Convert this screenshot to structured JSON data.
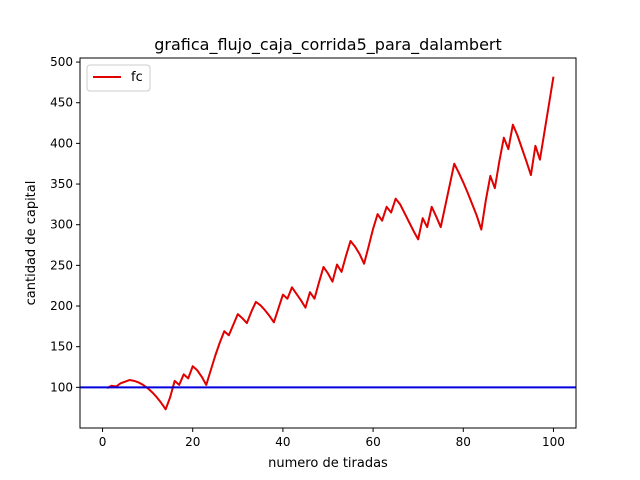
{
  "chart_data": {
    "type": "line",
    "title": "grafica_flujo_caja_corrida5_para_dalambert",
    "xlabel": "numero de tiradas",
    "ylabel": "cantidad de capital",
    "xlim": [
      -5,
      105
    ],
    "ylim": [
      50,
      505
    ],
    "x_ticks": [
      0,
      20,
      40,
      60,
      80,
      100
    ],
    "y_ticks": [
      100,
      150,
      200,
      250,
      300,
      350,
      400,
      450,
      500
    ],
    "grid": false,
    "legend_position": "top-left",
    "series": [
      {
        "name": "fc",
        "color": "#e00000",
        "x": [
          1,
          2,
          3,
          4,
          5,
          6,
          7,
          8,
          9,
          10,
          11,
          12,
          13,
          14,
          15,
          16,
          17,
          18,
          19,
          20,
          21,
          22,
          23,
          24,
          25,
          26,
          27,
          28,
          29,
          30,
          31,
          32,
          33,
          34,
          35,
          36,
          37,
          38,
          39,
          40,
          41,
          42,
          43,
          44,
          45,
          46,
          47,
          48,
          49,
          50,
          51,
          52,
          53,
          54,
          55,
          56,
          57,
          58,
          59,
          60,
          61,
          62,
          63,
          64,
          65,
          66,
          67,
          68,
          69,
          70,
          71,
          72,
          73,
          74,
          75,
          76,
          77,
          78,
          79,
          80,
          81,
          82,
          83,
          84,
          85,
          86,
          87,
          88,
          89,
          90,
          91,
          92,
          93,
          94,
          95,
          96,
          97,
          98,
          99,
          100
        ],
        "y": [
          99,
          102,
          101,
          105,
          107,
          109,
          108,
          106,
          103,
          99,
          94,
          88,
          81,
          73,
          88,
          108,
          103,
          116,
          111,
          126,
          121,
          113,
          103,
          121,
          139,
          155,
          169,
          164,
          177,
          190,
          185,
          179,
          193,
          205,
          201,
          195,
          188,
          180,
          197,
          214,
          209,
          223,
          215,
          207,
          198,
          217,
          209,
          229,
          248,
          240,
          230,
          251,
          242,
          262,
          280,
          273,
          264,
          252,
          273,
          295,
          313,
          305,
          322,
          315,
          332,
          325,
          314,
          303,
          292,
          282,
          308,
          297,
          322,
          310,
          297,
          323,
          349,
          375,
          364,
          352,
          339,
          325,
          311,
          294,
          330,
          360,
          345,
          378,
          407,
          393,
          423,
          410,
          394,
          378,
          361,
          397,
          380,
          414,
          448,
          482
        ]
      }
    ],
    "hlines": [
      {
        "y": 100,
        "color": "#0000dd"
      }
    ]
  }
}
